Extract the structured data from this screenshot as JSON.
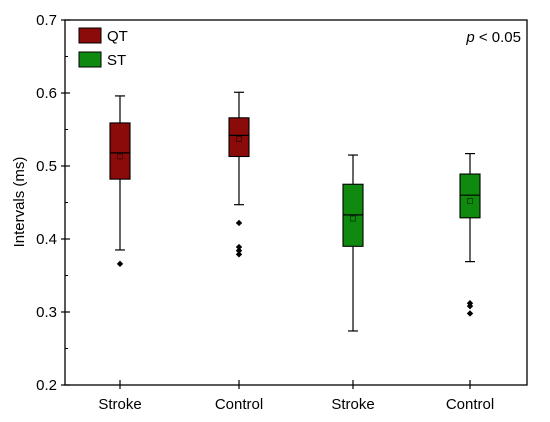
{
  "chart_data": {
    "type": "box",
    "title": "",
    "xlabel": "",
    "ylabel": "Intervals (ms)",
    "ylim": [
      0.2,
      0.7
    ],
    "yticks": [
      "0.2",
      "0.3",
      "0.4",
      "0.5",
      "0.6",
      "0.7"
    ],
    "categories": [
      "Stroke",
      "Control",
      "Stroke",
      "Control"
    ],
    "legend": [
      {
        "name": "QT",
        "color": "#8b0a0a"
      },
      {
        "name": "ST",
        "color": "#0f8a0f"
      }
    ],
    "legend_placement": "top-left",
    "grid": false,
    "annotation": {
      "italic": "p",
      "rest": " < 0.05"
    },
    "boxes": [
      {
        "category": "Stroke",
        "series": "QT",
        "color": "#8b0a0a",
        "whisker_low": 0.385,
        "q1": 0.482,
        "median": 0.518,
        "mean": 0.513,
        "q3": 0.559,
        "whisker_high": 0.596,
        "outliers": [
          0.366
        ]
      },
      {
        "category": "Control",
        "series": "QT",
        "color": "#8b0a0a",
        "whisker_low": 0.447,
        "q1": 0.513,
        "median": 0.542,
        "mean": 0.537,
        "q3": 0.566,
        "whisker_high": 0.601,
        "outliers": [
          0.422,
          0.389,
          0.384,
          0.379
        ]
      },
      {
        "category": "Stroke",
        "series": "ST",
        "color": "#0f8a0f",
        "whisker_low": 0.274,
        "q1": 0.39,
        "median": 0.433,
        "mean": 0.428,
        "q3": 0.475,
        "whisker_high": 0.515,
        "outliers": []
      },
      {
        "category": "Control",
        "series": "ST",
        "color": "#0f8a0f",
        "whisker_low": 0.369,
        "q1": 0.429,
        "median": 0.46,
        "mean": 0.452,
        "q3": 0.489,
        "whisker_high": 0.517,
        "outliers": [
          0.312,
          0.308,
          0.298
        ]
      }
    ]
  }
}
